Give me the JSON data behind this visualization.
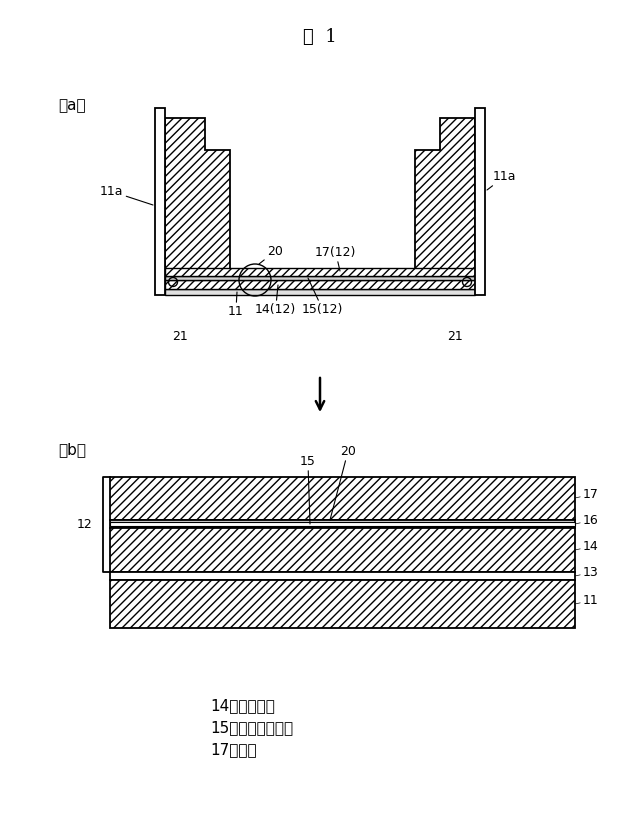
{
  "title": "図  1",
  "bg_color": "#ffffff",
  "line_color": "#000000",
  "legend": [
    "14：下地材層",
    "15：洸水バリア層",
    "17：床材"
  ],
  "label_a": "（a）",
  "label_b": "（b）"
}
